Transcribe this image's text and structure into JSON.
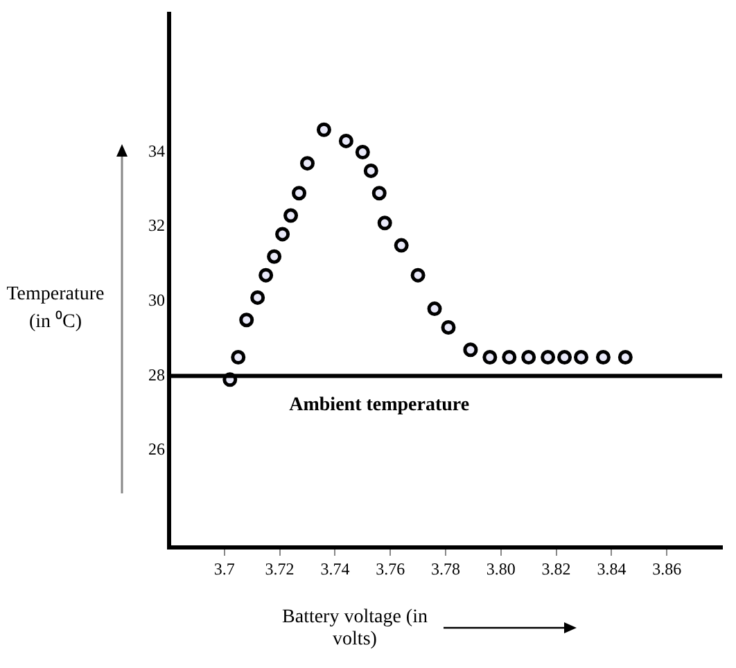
{
  "chart_data": {
    "type": "scatter",
    "xlabel": "Battery voltage (in volts)",
    "ylabel": "Temperature (in ⁰C)",
    "x": [
      3.702,
      3.705,
      3.708,
      3.712,
      3.715,
      3.718,
      3.721,
      3.724,
      3.727,
      3.73,
      3.736,
      3.744,
      3.75,
      3.753,
      3.756,
      3.758,
      3.764,
      3.77,
      3.776,
      3.781,
      3.789,
      3.796,
      3.803,
      3.81,
      3.817,
      3.823,
      3.829,
      3.837,
      3.845
    ],
    "values": [
      27.9,
      28.5,
      29.5,
      30.1,
      30.7,
      31.2,
      31.8,
      32.3,
      32.9,
      33.7,
      34.6,
      34.3,
      34.0,
      33.5,
      32.9,
      32.1,
      31.5,
      30.7,
      29.8,
      29.3,
      28.7,
      28.5,
      28.5,
      28.5,
      28.5,
      28.5,
      28.5,
      28.5,
      28.5
    ],
    "color": "#000000",
    "marker": "circle",
    "xlim": [
      3.68,
      3.88
    ],
    "xticks": [
      {
        "value": 3.7,
        "label": "3.7"
      },
      3.72,
      3.74,
      3.76,
      3.78,
      {
        "value": 3.8,
        "label": "3.80"
      },
      3.82,
      3.84,
      3.86
    ],
    "ylim": [
      23.4,
      37.7
    ],
    "yticks": [
      26,
      28,
      30,
      32,
      34
    ],
    "ref_lines": [
      {
        "axis": "y",
        "value": 28,
        "label": "Ambient temperature",
        "color": "#000000"
      }
    ],
    "grid": false,
    "legend": false
  }
}
